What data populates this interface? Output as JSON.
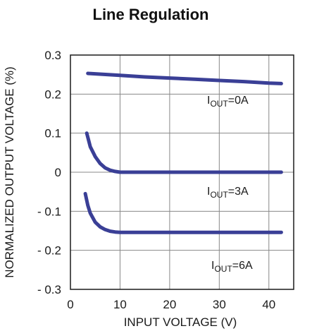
{
  "chart_data": {
    "type": "line",
    "title": "Line Regulation",
    "xlabel": "INPUT VOLTAGE (V)",
    "ylabel": "NORMALIZED OUTPUT VOLTAGE (%)",
    "xlim": [
      0,
      45
    ],
    "ylim": [
      -0.3,
      0.3
    ],
    "xticks": [
      0,
      10,
      20,
      30,
      40
    ],
    "xtick_labels": [
      "0",
      "10",
      "20",
      "30",
      "40"
    ],
    "yticks": [
      0.3,
      0.2,
      0.1,
      0,
      -0.1,
      -0.2,
      -0.3
    ],
    "ytick_labels": [
      "0.3",
      "0.2",
      "0.1",
      "0",
      "- 0.1",
      "- 0.2",
      "- 0.3"
    ],
    "grid": true,
    "line_color": "#3a3f96",
    "series": [
      {
        "label_main": "I",
        "label_sub": "OUT",
        "label_rest": "=0A",
        "x": [
          3.5,
          10,
          15,
          20,
          25,
          30,
          35,
          40,
          42.5
        ],
        "y": [
          0.253,
          0.248,
          0.244,
          0.241,
          0.238,
          0.235,
          0.232,
          0.228,
          0.227
        ]
      },
      {
        "label_main": "I",
        "label_sub": "OUT",
        "label_rest": "=3A",
        "x": [
          3.3,
          4,
          5,
          6,
          7,
          8,
          9,
          10,
          15,
          20,
          25,
          30,
          35,
          40,
          42.5
        ],
        "y": [
          0.1,
          0.065,
          0.04,
          0.022,
          0.011,
          0.005,
          0.002,
          0.0,
          0.0,
          0.0,
          0.0,
          0.0,
          0.0,
          0.0,
          0.0
        ]
      },
      {
        "label_main": "I",
        "label_sub": "OUT",
        "label_rest": "=6A",
        "x": [
          3.0,
          3.5,
          4,
          5,
          6,
          7,
          8,
          9,
          10,
          15,
          20,
          25,
          30,
          35,
          40,
          42.5
        ],
        "y": [
          -0.055,
          -0.085,
          -0.105,
          -0.128,
          -0.14,
          -0.147,
          -0.151,
          -0.153,
          -0.154,
          -0.154,
          -0.154,
          -0.154,
          -0.154,
          -0.154,
          -0.154,
          -0.154
        ]
      }
    ]
  }
}
